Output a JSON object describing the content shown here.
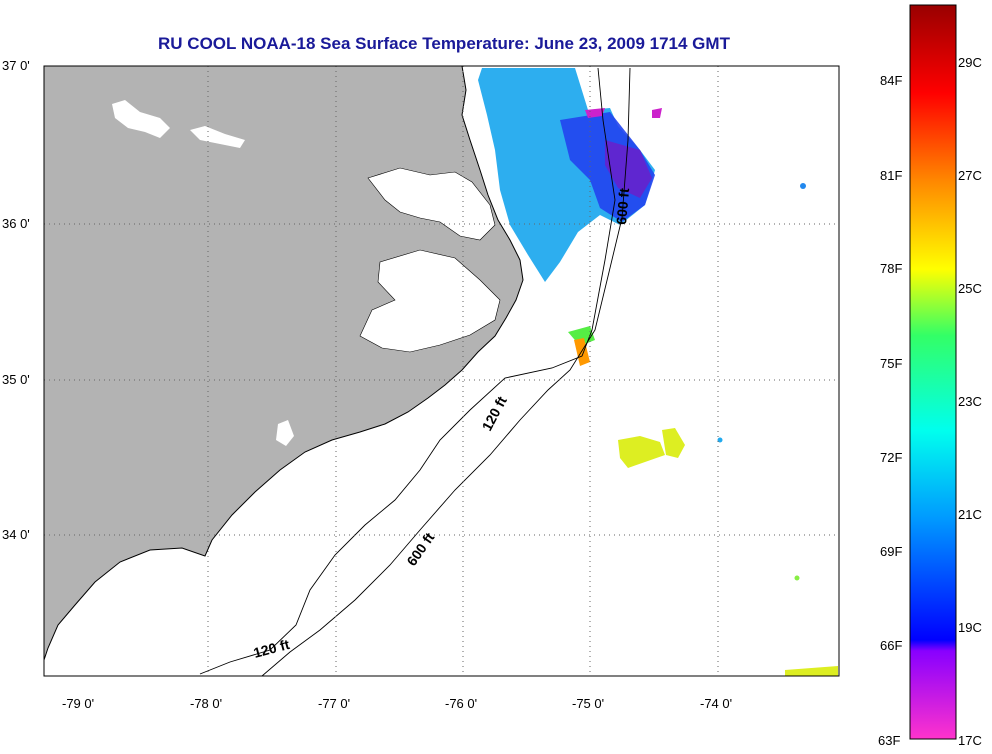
{
  "title": "RU COOL  NOAA-18  Sea Surface Temperature:  June 23, 2009 1714 GMT",
  "map": {
    "latitude_labels": [
      "37 0'",
      "36 0'",
      "35 0'",
      "34 0'"
    ],
    "longitude_labels": [
      "-79 0'",
      "-78 0'",
      "-77 0'",
      "-76 0'",
      "-75 0'",
      "-74 0'"
    ],
    "isobath_labels": [
      "120 ft",
      "600 ft",
      "120 ft",
      "600 ft"
    ],
    "land_color": "#b3b3b3",
    "ocean_color": "#ffffff"
  },
  "colorbar": {
    "fahrenheit_labels": [
      "84F",
      "81F",
      "78F",
      "75F",
      "72F",
      "69F",
      "66F",
      "63F"
    ],
    "celsius_labels": [
      "29C",
      "27C",
      "25C",
      "23C",
      "21C",
      "19C",
      "17C"
    ]
  }
}
